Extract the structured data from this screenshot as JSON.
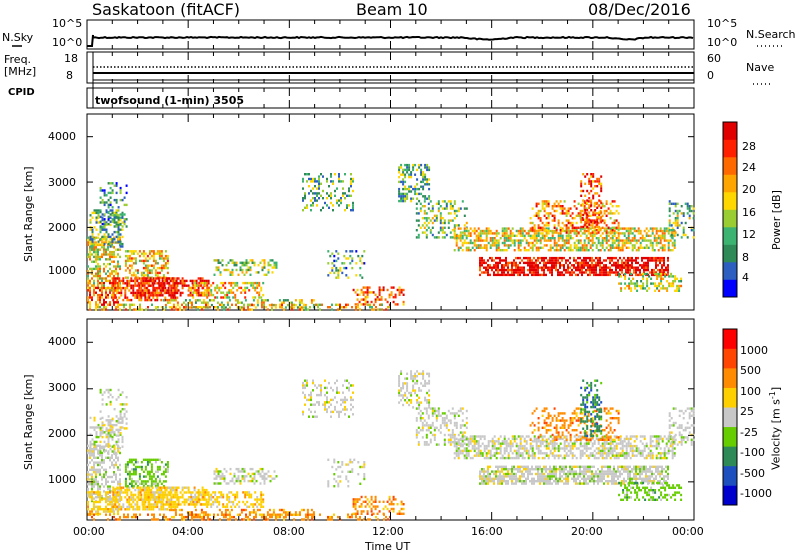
{
  "header": {
    "station": "Saskatoon (fitACF)",
    "beam": "Beam 10",
    "date": "08/Dec/2016"
  },
  "top_panel": {
    "left_label": "N.Sky",
    "left_ticks": [
      "10^5",
      "10^0"
    ],
    "right_label": "N.Search",
    "right_ticks": [
      "10^5",
      "10^0"
    ]
  },
  "freq_panel": {
    "label_line1": "Freq.",
    "label_line2": "[MHz]",
    "left_ticks": [
      "18",
      "8"
    ],
    "right_label": "Nave",
    "right_ticks": [
      "60",
      "0"
    ],
    "cpid_label": "CPID",
    "program": "twofsound (1-min) 3505"
  },
  "chart_data": [
    {
      "type": "heatmap",
      "name": "power",
      "ylabel": "Slant Range [km]",
      "y_ticks": [
        "1000",
        "2000",
        "3000",
        "4000"
      ],
      "ylim": [
        180,
        4500
      ],
      "colorbar_label": "Power [dB]",
      "colorbar_ticks": [
        "28",
        "24",
        "20",
        "16",
        "12",
        "8",
        "4"
      ],
      "colors": [
        "#0000ff",
        "#2c5fbf",
        "#2e8b57",
        "#3cb371",
        "#9acd32",
        "#ffd700",
        "#ffa500",
        "#ff6a00",
        "#ff2000",
        "#e00000"
      ]
    },
    {
      "type": "heatmap",
      "name": "velocity",
      "ylabel": "Slant Range [km]",
      "y_ticks": [
        "1000",
        "2000",
        "3000",
        "4000"
      ],
      "ylim": [
        180,
        4500
      ],
      "xlabel": "Time UT",
      "x_ticks": [
        "00:00",
        "04:00",
        "08:00",
        "12:00",
        "16:00",
        "20:00",
        "00:00"
      ],
      "colorbar_label": "Velocity [m s",
      "colorbar_exponent": "-1",
      "colorbar_ticks": [
        "1000",
        "500",
        "100",
        "25",
        "-25",
        "-100",
        "-500",
        "-1000"
      ],
      "colors": [
        "#0000cd",
        "#1e4fbf",
        "#2e8b57",
        "#66cd00",
        "#c8c8c8",
        "#ffd000",
        "#ff8c00",
        "#ff4500",
        "#ff0000"
      ]
    }
  ]
}
